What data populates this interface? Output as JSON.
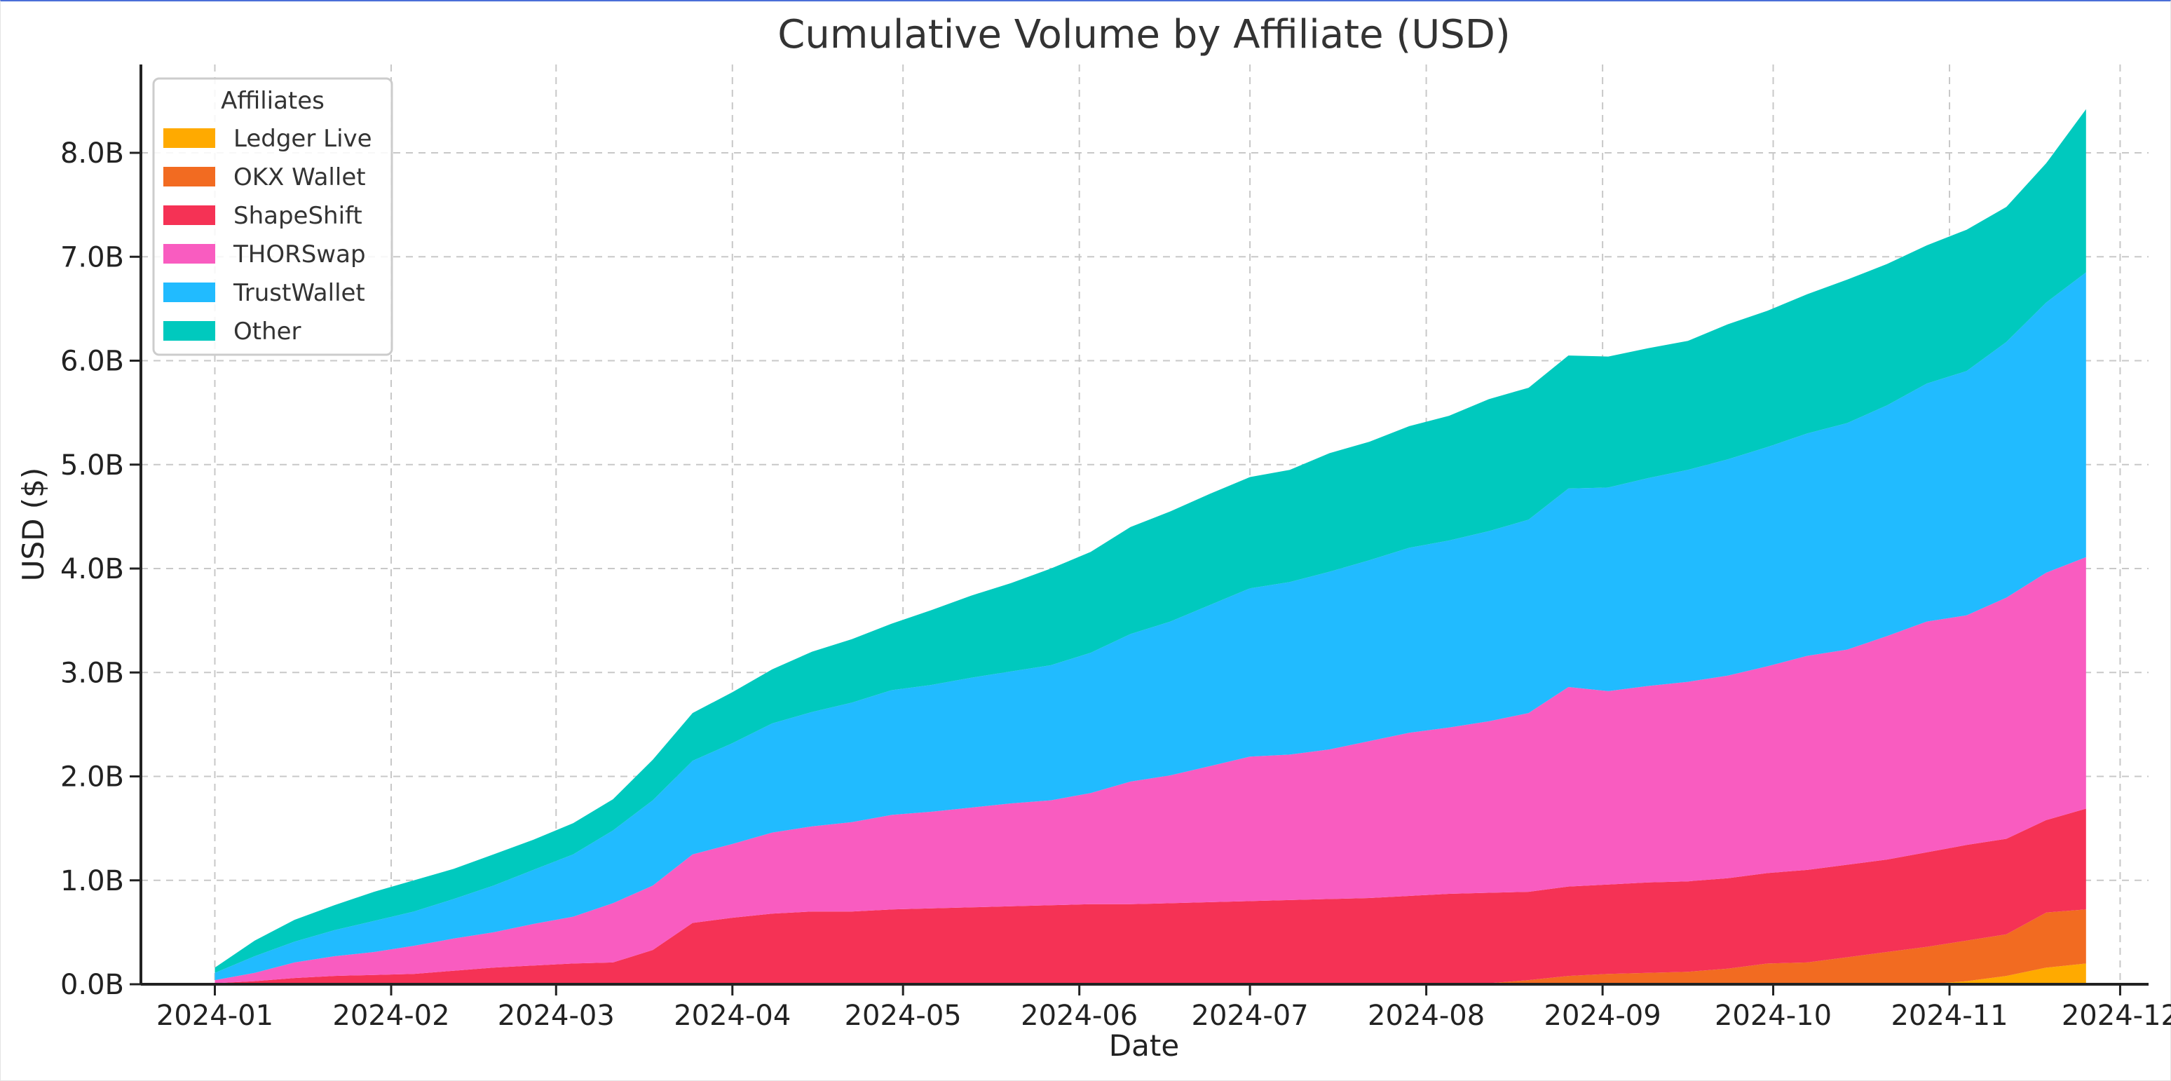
{
  "chart_data": {
    "type": "area",
    "stacked": true,
    "title": "Cumulative Volume by Affiliate (USD)",
    "xlabel": "Date",
    "ylabel": "USD ($)",
    "ylim": [
      0,
      8.85
    ],
    "y_unit": "B",
    "xlim": [
      "2023-12-19",
      "2024-12-06"
    ],
    "x_ticks": [
      "2024-01-01",
      "2024-02-01",
      "2024-03-01",
      "2024-04-01",
      "2024-05-01",
      "2024-06-01",
      "2024-07-01",
      "2024-08-01",
      "2024-09-01",
      "2024-10-01",
      "2024-11-01",
      "2024-12-01"
    ],
    "x_tick_labels": [
      "2024-01",
      "2024-02",
      "2024-03",
      "2024-04",
      "2024-05",
      "2024-06",
      "2024-07",
      "2024-08",
      "2024-09",
      "2024-10",
      "2024-11",
      "2024-12"
    ],
    "y_ticks": [
      0,
      1,
      2,
      3,
      4,
      5,
      6,
      7,
      8
    ],
    "y_tick_labels": [
      "0.0B",
      "1.0B",
      "2.0B",
      "3.0B",
      "4.0B",
      "5.0B",
      "6.0B",
      "7.0B",
      "8.0B"
    ],
    "grid": true,
    "legend": {
      "title": "Affiliates",
      "placement": "top-left"
    },
    "x": [
      "2024-01-01",
      "2024-01-08",
      "2024-01-15",
      "2024-01-22",
      "2024-01-29",
      "2024-02-05",
      "2024-02-12",
      "2024-02-19",
      "2024-02-26",
      "2024-03-04",
      "2024-03-11",
      "2024-03-18",
      "2024-03-25",
      "2024-04-01",
      "2024-04-08",
      "2024-04-15",
      "2024-04-22",
      "2024-04-29",
      "2024-05-06",
      "2024-05-13",
      "2024-05-20",
      "2024-05-27",
      "2024-06-03",
      "2024-06-10",
      "2024-06-17",
      "2024-06-24",
      "2024-07-01",
      "2024-07-08",
      "2024-07-15",
      "2024-07-22",
      "2024-07-29",
      "2024-08-05",
      "2024-08-12",
      "2024-08-19",
      "2024-08-26",
      "2024-09-02",
      "2024-09-09",
      "2024-09-16",
      "2024-09-23",
      "2024-09-30",
      "2024-10-07",
      "2024-10-14",
      "2024-10-21",
      "2024-10-28",
      "2024-11-04",
      "2024-11-11",
      "2024-11-18",
      "2024-11-25"
    ],
    "series": [
      {
        "name": "Ledger Live",
        "color": "#FFAA00",
        "values": [
          0,
          0,
          0,
          0,
          0,
          0,
          0,
          0,
          0,
          0,
          0,
          0,
          0,
          0,
          0,
          0,
          0,
          0,
          0,
          0,
          0,
          0,
          0,
          0,
          0,
          0,
          0,
          0,
          0,
          0,
          0,
          0,
          0,
          0,
          0,
          0,
          0,
          0,
          0,
          0,
          0,
          0,
          0,
          0,
          0.03,
          0.08,
          0.16,
          0.2
        ]
      },
      {
        "name": "OKX Wallet",
        "color": "#F26B21",
        "values": [
          0,
          0,
          0,
          0,
          0,
          0,
          0,
          0,
          0,
          0,
          0,
          0,
          0,
          0,
          0,
          0,
          0,
          0,
          0,
          0,
          0,
          0,
          0,
          0,
          0,
          0,
          0,
          0,
          0,
          0,
          0,
          0,
          0.01,
          0.04,
          0.08,
          0.1,
          0.11,
          0.12,
          0.15,
          0.2,
          0.21,
          0.26,
          0.31,
          0.36,
          0.39,
          0.4,
          0.53,
          0.52
        ]
      },
      {
        "name": "ShapeShift",
        "color": "#F53255",
        "values": [
          0.01,
          0.03,
          0.06,
          0.08,
          0.09,
          0.1,
          0.13,
          0.16,
          0.18,
          0.2,
          0.21,
          0.33,
          0.59,
          0.64,
          0.68,
          0.7,
          0.7,
          0.72,
          0.73,
          0.74,
          0.75,
          0.76,
          0.77,
          0.77,
          0.78,
          0.79,
          0.8,
          0.81,
          0.82,
          0.83,
          0.85,
          0.87,
          0.87,
          0.85,
          0.86,
          0.86,
          0.87,
          0.87,
          0.87,
          0.87,
          0.89,
          0.89,
          0.89,
          0.91,
          0.92,
          0.92,
          0.89,
          0.97
        ]
      },
      {
        "name": "THORSwap",
        "color": "#F95CC0",
        "values": [
          0.03,
          0.08,
          0.15,
          0.19,
          0.22,
          0.27,
          0.31,
          0.34,
          0.4,
          0.45,
          0.57,
          0.62,
          0.66,
          0.71,
          0.78,
          0.82,
          0.86,
          0.91,
          0.93,
          0.96,
          0.99,
          1.01,
          1.07,
          1.18,
          1.23,
          1.31,
          1.39,
          1.4,
          1.44,
          1.51,
          1.57,
          1.6,
          1.65,
          1.72,
          1.92,
          1.86,
          1.89,
          1.92,
          1.95,
          1.99,
          2.06,
          2.07,
          2.15,
          2.22,
          2.21,
          2.32,
          2.38,
          2.42
        ]
      },
      {
        "name": "TrustWallet",
        "color": "#21BBFF",
        "values": [
          0.07,
          0.16,
          0.2,
          0.25,
          0.3,
          0.33,
          0.38,
          0.45,
          0.52,
          0.6,
          0.7,
          0.82,
          0.9,
          0.97,
          1.05,
          1.1,
          1.15,
          1.2,
          1.22,
          1.25,
          1.27,
          1.3,
          1.35,
          1.42,
          1.48,
          1.55,
          1.62,
          1.66,
          1.71,
          1.74,
          1.78,
          1.8,
          1.83,
          1.86,
          1.91,
          1.96,
          2.0,
          2.04,
          2.08,
          2.11,
          2.14,
          2.18,
          2.22,
          2.29,
          2.35,
          2.46,
          2.6,
          2.74
        ]
      },
      {
        "name": "Other",
        "color": "#00C9BE",
        "values": [
          0.05,
          0.15,
          0.21,
          0.24,
          0.28,
          0.3,
          0.29,
          0.3,
          0.29,
          0.3,
          0.3,
          0.39,
          0.46,
          0.49,
          0.52,
          0.58,
          0.61,
          0.64,
          0.72,
          0.79,
          0.85,
          0.93,
          0.97,
          1.03,
          1.06,
          1.07,
          1.07,
          1.08,
          1.14,
          1.14,
          1.17,
          1.2,
          1.27,
          1.27,
          1.28,
          1.26,
          1.25,
          1.24,
          1.3,
          1.31,
          1.34,
          1.38,
          1.36,
          1.33,
          1.36,
          1.3,
          1.34,
          1.57
        ]
      }
    ]
  }
}
